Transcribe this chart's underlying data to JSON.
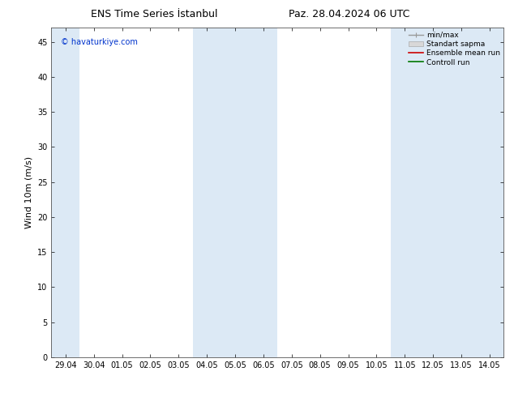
{
  "title_left": "ENS Time Series İstanbul",
  "title_right": "Paz. 28.04.2024 06 UTC",
  "ylabel": "Wind 10m (m/s)",
  "watermark": "© havaturkiye.com",
  "x_tick_labels": [
    "29.04",
    "30.04",
    "01.05",
    "02.05",
    "03.05",
    "04.05",
    "05.05",
    "06.05",
    "07.05",
    "08.05",
    "09.05",
    "10.05",
    "11.05",
    "12.05",
    "13.05",
    "14.05"
  ],
  "ylim": [
    0,
    47
  ],
  "yticks": [
    0,
    5,
    10,
    15,
    20,
    25,
    30,
    35,
    40,
    45
  ],
  "shaded_color": "#dce9f5",
  "background_color": "#ffffff",
  "legend_entries": [
    "min/max",
    "Standart sapma",
    "Ensemble mean run",
    "Controll run"
  ],
  "title_fontsize": 9,
  "label_fontsize": 8,
  "tick_fontsize": 7,
  "watermark_fontsize": 7
}
